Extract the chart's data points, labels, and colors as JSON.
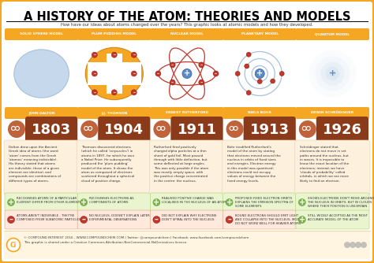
{
  "title": "A HISTORY OF THE ATOM: THEORIES AND MODELS",
  "subtitle": "How have our ideas about atoms changed over the years? This graphic looks at atomic models and how they developed.",
  "orange": "#F5A623",
  "dark_orange": "#D4881E",
  "red": "#C0392B",
  "green": "#7AB648",
  "light_blue": "#C5D8EC",
  "blue_nucleus": "#5B8DC5",
  "electron_color": "#C0392B",
  "face_color": "#C0623A",
  "year_bg": "#8B3A1A",
  "desc_bg": "#FDF0DC",
  "pro_bg": "#EAF5D0",
  "con_bg": "#FFE8DC",
  "scientists": [
    {
      "name": "JOHN DALTON",
      "year": "1803",
      "model": "SOLID SPHERE MODEL"
    },
    {
      "name": "J.J. THOMSON",
      "year": "1904",
      "model": "PLUM PUDDING MODEL"
    },
    {
      "name": "ERNEST RUTHERFORD",
      "year": "1911",
      "model": "NUCLEAR MODEL"
    },
    {
      "name": "NIELS BOHR",
      "year": "1913",
      "model": "PLANETARY MODEL"
    },
    {
      "name": "ERWIN SCHRÖDINGER",
      "year": "1926",
      "model": "QUANTUM MODEL"
    }
  ],
  "descriptions": [
    "Dalton drew upon the Ancient\nGreek idea of atoms (the word\n'atom' comes from the Greek\n'atomos' meaning indivisible).\nHis theory stated that atoms\nare indivisible, those of a given\nelement are identical, and\ncompounds are combinations of\ndifferent types of atoms.",
    "Thomson discovered electrons\n(which he called 'corpuscles') in\natoms in 1897, for which he won\na Nobel Prize. He subsequently\nproduced the 'plum pudding'\nmodel of the atom. It shows the\natom as composed of electrons\nscattered throughout a spherical\ncloud of positive charge.",
    "Rutherford fired positively\ncharged alpha particles at a thin\nsheet of gold foil. Most passed\nthrough with little deflection, but\nsome deflected at large angles.\nThis was only possible if the atom\nwas mostly empty space, with\nthe positive charge concentrated\nin the centre: the nucleus.",
    "Bohr modified Rutherford's\nmodel of the atom by stating\nthat electrons moved around the\nnucleus in orbits of fixed sizes\nand energies. Electron energy\nin this model was quantised;\nelectrons could not occupy\nvalues of energy between the\nfixed energy levels.",
    "Schrödinger stated that\nelectrons do not move in set\npaths around the nucleus, but\nin waves. It is impossible to\nknow the exact location of the\nelectrons; instead, we have\n'clouds of probability' called\norbitals, in which we are more\nlikely to find an electron."
  ],
  "pros": [
    "RECOGNISES ATOMS OF A PARTICULAR\nELEMENT DIFFER FROM OTHER ELEMENTS",
    "RECOGNISES ELECTRONS AS\nCOMPONENTS OF ATOMS",
    "REALISED POSITIVE CHARGE WAS\nLOCALISED IN THE NUCLEUS OF AN ATOM",
    "PROPOSED FIXED ELECTRON ORBITS\nEXPLAINS THE EMISSION SPECTRA OF\nSOME ELEMENTS",
    "SHOWS ELECTRONS DON'T MOVE AROUND\nTHE NUCLEUS IN ORBITS, BUT IN CLOUDS\nWHERE THEIR POSITION IS UNCERTAIN"
  ],
  "cons": [
    "ATOMS AREN'T INDIVISIBLE - THEY'RE\nCOMPOSED FROM SUBATOMIC PARTICLES",
    "NO NUCLEUS, DOESN'T EXPLAIN LATER\nEXPERIMENTAL OBSERVATIONS",
    "DID NOT EXPLAIN WHY ELECTRONS\nDON'T SPIRAL INTO THE NUCLEUS",
    "BOUND ELECTRONS SHOULD EMIT LIGHT\nAND COLLAPSE INTO THE NUCLEUS, MODEL\nDO NOT WORK WELL FOR HEAVIER ATOMS",
    "STILL WIDELY ACCEPTED AS THE MOST\nACCURATE MODEL OF THE ATOM"
  ],
  "con_is_pro": [
    false,
    false,
    false,
    false,
    true
  ],
  "footer": "© COMPOUND INTEREST 2016 - WWW.COMPOUNDCHEM.COM | Twitter: @compoundchem | Facebook: www.facebook.com/compoundchem\nThis graphic is shared under a Creative Commons Attribution-NonCommercial-NoDerivatives licence."
}
